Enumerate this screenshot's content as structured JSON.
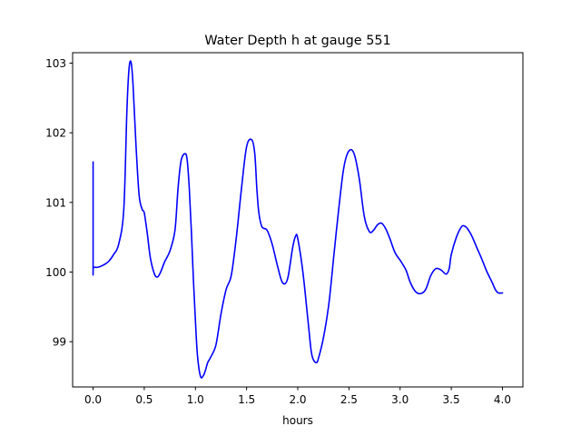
{
  "chart_data": {
    "type": "line",
    "title": "Water Depth h at gauge 551",
    "xlabel": "hours",
    "ylabel": "",
    "xlim": [
      -0.2,
      4.2
    ],
    "ylim": [
      98.35,
      103.15
    ],
    "xticks": [
      0.0,
      0.5,
      1.0,
      1.5,
      2.0,
      2.5,
      3.0,
      3.5,
      4.0
    ],
    "xtick_labels": [
      "0.0",
      "0.5",
      "1.0",
      "1.5",
      "2.0",
      "2.5",
      "3.0",
      "3.5",
      "4.0"
    ],
    "yticks": [
      99,
      100,
      101,
      102,
      103
    ],
    "ytick_labels": [
      "99",
      "100",
      "101",
      "102",
      "103"
    ],
    "grid": false,
    "legend": "none",
    "series": [
      {
        "color": "#0000ff",
        "x": [
          0.0,
          0.0,
          0.005,
          0.05,
          0.1,
          0.15,
          0.2,
          0.25,
          0.3,
          0.33,
          0.35,
          0.37,
          0.39,
          0.42,
          0.45,
          0.48,
          0.5,
          0.53,
          0.56,
          0.6,
          0.63,
          0.66,
          0.7,
          0.75,
          0.8,
          0.83,
          0.86,
          0.9,
          0.92,
          0.94,
          0.96,
          0.98,
          1.0,
          1.02,
          1.05,
          1.08,
          1.1,
          1.12,
          1.15,
          1.2,
          1.25,
          1.3,
          1.35,
          1.4,
          1.45,
          1.5,
          1.55,
          1.58,
          1.6,
          1.62,
          1.65,
          1.7,
          1.75,
          1.8,
          1.85,
          1.9,
          1.95,
          1.98,
          2.0,
          2.05,
          2.1,
          2.13,
          2.15,
          2.18,
          2.2,
          2.25,
          2.3,
          2.33,
          2.35,
          2.4,
          2.45,
          2.5,
          2.55,
          2.6,
          2.65,
          2.7,
          2.74,
          2.78,
          2.82,
          2.86,
          2.9,
          2.95,
          3.0,
          3.03,
          3.06,
          3.1,
          3.15,
          3.2,
          3.25,
          3.3,
          3.35,
          3.4,
          3.45,
          3.48,
          3.5,
          3.55,
          3.6,
          3.63,
          3.66,
          3.7,
          3.75,
          3.8,
          3.85,
          3.9,
          3.93,
          3.96,
          4.0
        ],
        "y": [
          101.58,
          100.07,
          100.07,
          100.07,
          100.1,
          100.15,
          100.25,
          100.4,
          100.9,
          102.3,
          102.9,
          103.02,
          102.7,
          101.8,
          101.1,
          100.9,
          100.85,
          100.55,
          100.2,
          99.97,
          99.93,
          100.0,
          100.15,
          100.3,
          100.6,
          101.2,
          101.6,
          101.7,
          101.6,
          101.2,
          100.6,
          99.9,
          99.3,
          98.8,
          98.5,
          98.52,
          98.6,
          98.7,
          98.78,
          98.95,
          99.4,
          99.75,
          99.95,
          100.5,
          101.2,
          101.8,
          101.9,
          101.7,
          101.2,
          100.85,
          100.65,
          100.6,
          100.4,
          100.1,
          99.85,
          99.9,
          100.35,
          100.52,
          100.48,
          100.0,
          99.3,
          98.88,
          98.75,
          98.7,
          98.75,
          99.05,
          99.5,
          99.9,
          100.2,
          100.9,
          101.5,
          101.74,
          101.7,
          101.35,
          100.8,
          100.58,
          100.6,
          100.68,
          100.7,
          100.62,
          100.48,
          100.28,
          100.17,
          100.1,
          100.02,
          99.85,
          99.72,
          99.69,
          99.75,
          99.95,
          100.05,
          100.03,
          99.97,
          100.05,
          100.25,
          100.5,
          100.65,
          100.66,
          100.62,
          100.52,
          100.35,
          100.18,
          100.0,
          99.85,
          99.75,
          99.7,
          99.7
        ]
      }
    ]
  }
}
